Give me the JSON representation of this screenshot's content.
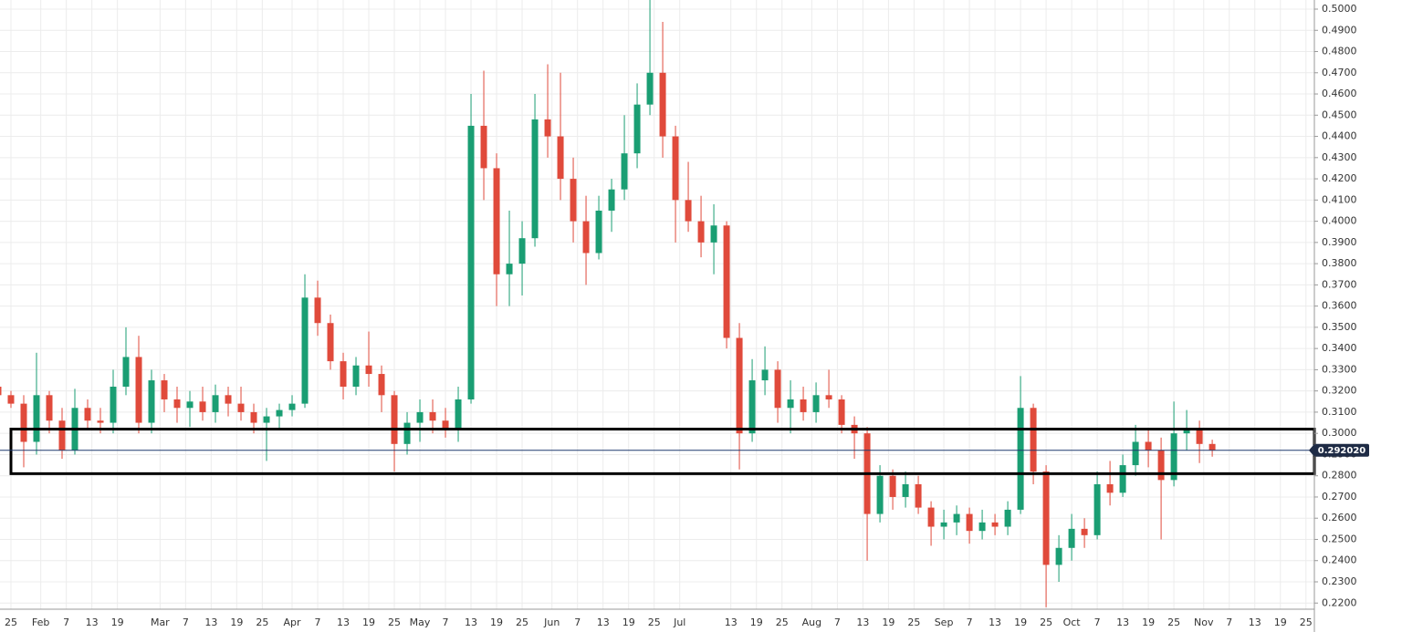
{
  "chart_data": {
    "type": "candlestick",
    "x": [
      "Jan 22",
      "Jan 25",
      "Jan 28",
      "Jan 31",
      "Feb 3",
      "Feb 6",
      "Feb 9",
      "Feb 12",
      "Feb 15",
      "Feb 18",
      "Feb 21",
      "Feb 24",
      "Feb 27",
      "Mar 2",
      "Mar 5",
      "Mar 8",
      "Mar 11",
      "Mar 14",
      "Mar 17",
      "Mar 20",
      "Mar 23",
      "Mar 26",
      "Mar 29",
      "Apr 1",
      "Apr 4",
      "Apr 7",
      "Apr 10",
      "Apr 13",
      "Apr 16",
      "Apr 19",
      "Apr 22",
      "Apr 25",
      "Apr 28",
      "May 1",
      "May 4",
      "May 7",
      "May 10",
      "May 13",
      "May 16",
      "May 19",
      "May 22",
      "May 25",
      "May 28",
      "May 31",
      "Jun 3",
      "Jun 6",
      "Jun 9",
      "Jun 12",
      "Jun 15",
      "Jun 18",
      "Jun 21",
      "Jun 24",
      "Jun 27",
      "Jun 30",
      "Jul 3",
      "Jul 6",
      "Jul 9",
      "Jul 12",
      "Jul 15",
      "Jul 18",
      "Jul 21",
      "Jul 24",
      "Jul 27",
      "Jul 30",
      "Aug 2",
      "Aug 5",
      "Aug 8",
      "Aug 11",
      "Aug 14",
      "Aug 17",
      "Aug 20",
      "Aug 23",
      "Aug 26",
      "Aug 29",
      "Sep 1",
      "Sep 4",
      "Sep 7",
      "Sep 10",
      "Sep 13",
      "Sep 16",
      "Sep 19",
      "Sep 22",
      "Sep 25",
      "Sep 28",
      "Oct 1",
      "Oct 4",
      "Oct 7",
      "Oct 10",
      "Oct 13",
      "Oct 16",
      "Oct 19",
      "Oct 22",
      "Oct 25",
      "Oct 28",
      "Oct 31",
      "Nov 3"
    ],
    "open": [
      0.322,
      0.318,
      0.314,
      0.296,
      0.318,
      0.306,
      0.292,
      0.312,
      0.306,
      0.305,
      0.322,
      0.336,
      0.305,
      0.325,
      0.316,
      0.312,
      0.315,
      0.31,
      0.318,
      0.314,
      0.31,
      0.305,
      0.308,
      0.311,
      0.314,
      0.364,
      0.352,
      0.334,
      0.322,
      0.332,
      0.328,
      0.318,
      0.295,
      0.305,
      0.31,
      0.306,
      0.302,
      0.316,
      0.445,
      0.425,
      0.375,
      0.38,
      0.392,
      0.448,
      0.44,
      0.42,
      0.4,
      0.385,
      0.405,
      0.415,
      0.432,
      0.455,
      0.47,
      0.44,
      0.41,
      0.4,
      0.39,
      0.398,
      0.345,
      0.3,
      0.325,
      0.33,
      0.312,
      0.316,
      0.31,
      0.318,
      0.316,
      0.304,
      0.3,
      0.262,
      0.28,
      0.27,
      0.276,
      0.265,
      0.256,
      0.258,
      0.262,
      0.254,
      0.258,
      0.256,
      0.264,
      0.312,
      0.282,
      0.238,
      0.246,
      0.255,
      0.252,
      0.276,
      0.272,
      0.285,
      0.296,
      0.292,
      0.278,
      0.3,
      0.302,
      0.295
    ],
    "high": [
      0.323,
      0.32,
      0.318,
      0.338,
      0.32,
      0.312,
      0.321,
      0.316,
      0.312,
      0.33,
      0.35,
      0.346,
      0.33,
      0.328,
      0.322,
      0.32,
      0.322,
      0.323,
      0.322,
      0.322,
      0.314,
      0.312,
      0.314,
      0.318,
      0.375,
      0.372,
      0.356,
      0.338,
      0.336,
      0.348,
      0.332,
      0.32,
      0.31,
      0.316,
      0.316,
      0.312,
      0.322,
      0.46,
      0.471,
      0.432,
      0.405,
      0.4,
      0.46,
      0.474,
      0.47,
      0.43,
      0.412,
      0.412,
      0.42,
      0.45,
      0.465,
      0.505,
      0.494,
      0.445,
      0.428,
      0.412,
      0.408,
      0.4,
      0.352,
      0.335,
      0.341,
      0.334,
      0.325,
      0.322,
      0.324,
      0.33,
      0.318,
      0.308,
      0.303,
      0.285,
      0.283,
      0.282,
      0.28,
      0.268,
      0.264,
      0.266,
      0.265,
      0.264,
      0.262,
      0.268,
      0.327,
      0.314,
      0.285,
      0.252,
      0.262,
      0.26,
      0.282,
      0.287,
      0.29,
      0.304,
      0.302,
      0.298,
      0.315,
      0.311,
      0.306,
      0.297
    ],
    "low": [
      0.316,
      0.312,
      0.284,
      0.29,
      0.3,
      0.288,
      0.29,
      0.302,
      0.3,
      0.3,
      0.318,
      0.3,
      0.3,
      0.31,
      0.305,
      0.303,
      0.306,
      0.305,
      0.308,
      0.306,
      0.3,
      0.287,
      0.302,
      0.308,
      0.312,
      0.346,
      0.33,
      0.316,
      0.318,
      0.322,
      0.31,
      0.282,
      0.29,
      0.296,
      0.3,
      0.298,
      0.296,
      0.314,
      0.41,
      0.36,
      0.36,
      0.365,
      0.388,
      0.43,
      0.41,
      0.39,
      0.37,
      0.382,
      0.395,
      0.41,
      0.425,
      0.45,
      0.43,
      0.39,
      0.395,
      0.383,
      0.375,
      0.34,
      0.283,
      0.296,
      0.318,
      0.305,
      0.3,
      0.306,
      0.305,
      0.312,
      0.3,
      0.288,
      0.24,
      0.258,
      0.264,
      0.265,
      0.262,
      0.247,
      0.25,
      0.252,
      0.248,
      0.25,
      0.252,
      0.252,
      0.262,
      0.276,
      0.218,
      0.23,
      0.24,
      0.246,
      0.25,
      0.266,
      0.27,
      0.28,
      0.284,
      0.25,
      0.275,
      0.292,
      0.286,
      0.289
    ],
    "close": [
      0.318,
      0.314,
      0.296,
      0.318,
      0.306,
      0.292,
      0.312,
      0.306,
      0.305,
      0.322,
      0.336,
      0.305,
      0.325,
      0.316,
      0.312,
      0.315,
      0.31,
      0.318,
      0.314,
      0.31,
      0.305,
      0.308,
      0.311,
      0.314,
      0.364,
      0.352,
      0.334,
      0.322,
      0.332,
      0.328,
      0.318,
      0.295,
      0.305,
      0.31,
      0.306,
      0.302,
      0.316,
      0.445,
      0.425,
      0.375,
      0.38,
      0.392,
      0.448,
      0.44,
      0.42,
      0.4,
      0.385,
      0.405,
      0.415,
      0.432,
      0.455,
      0.47,
      0.44,
      0.41,
      0.4,
      0.39,
      0.398,
      0.345,
      0.3,
      0.325,
      0.33,
      0.312,
      0.316,
      0.31,
      0.318,
      0.316,
      0.304,
      0.3,
      0.262,
      0.28,
      0.27,
      0.276,
      0.265,
      0.256,
      0.258,
      0.262,
      0.254,
      0.258,
      0.256,
      0.264,
      0.312,
      0.282,
      0.238,
      0.246,
      0.255,
      0.252,
      0.276,
      0.272,
      0.285,
      0.296,
      0.292,
      0.278,
      0.3,
      0.302,
      0.295,
      0.292
    ],
    "up_color": "#1a9e73",
    "down_color": "#e04a3b",
    "ylim": [
      0.2171,
      0.5043
    ],
    "yticks": [
      {
        "value": 0.22,
        "label": "0.2200"
      },
      {
        "value": 0.23,
        "label": "0.2300"
      },
      {
        "value": 0.24,
        "label": "0.2400"
      },
      {
        "value": 0.25,
        "label": "0.2500"
      },
      {
        "value": 0.26,
        "label": "0.2600"
      },
      {
        "value": 0.27,
        "label": "0.2700"
      },
      {
        "value": 0.28,
        "label": "0.2800"
      },
      {
        "value": 0.29,
        "label": "0.2900"
      },
      {
        "value": 0.3,
        "label": "0.3000"
      },
      {
        "value": 0.31,
        "label": "0.3100"
      },
      {
        "value": 0.32,
        "label": "0.3200"
      },
      {
        "value": 0.33,
        "label": "0.3300"
      },
      {
        "value": 0.34,
        "label": "0.3400"
      },
      {
        "value": 0.35,
        "label": "0.3500"
      },
      {
        "value": 0.36,
        "label": "0.3600"
      },
      {
        "value": 0.37,
        "label": "0.3700"
      },
      {
        "value": 0.38,
        "label": "0.3800"
      },
      {
        "value": 0.39,
        "label": "0.3900"
      },
      {
        "value": 0.4,
        "label": "0.4000"
      },
      {
        "value": 0.41,
        "label": "0.4100"
      },
      {
        "value": 0.42,
        "label": "0.4200"
      },
      {
        "value": 0.43,
        "label": "0.4300"
      },
      {
        "value": 0.44,
        "label": "0.4400"
      },
      {
        "value": 0.45,
        "label": "0.4500"
      },
      {
        "value": 0.46,
        "label": "0.4600"
      },
      {
        "value": 0.47,
        "label": "0.4700"
      },
      {
        "value": 0.48,
        "label": "0.4800"
      },
      {
        "value": 0.49,
        "label": "0.4900"
      },
      {
        "value": 0.5,
        "label": "0.5000"
      }
    ],
    "xticks": [
      {
        "value": "Jan 25",
        "label": "25"
      },
      {
        "value": "Feb 1",
        "label": "Feb"
      },
      {
        "value": "Feb 7",
        "label": "7"
      },
      {
        "value": "Feb 13",
        "label": "13"
      },
      {
        "value": "Feb 19",
        "label": "19"
      },
      {
        "value": "Mar 1",
        "label": "Mar"
      },
      {
        "value": "Mar 7",
        "label": "7"
      },
      {
        "value": "Mar 13",
        "label": "13"
      },
      {
        "value": "Mar 19",
        "label": "19"
      },
      {
        "value": "Mar 25",
        "label": "25"
      },
      {
        "value": "Apr 1",
        "label": "Apr"
      },
      {
        "value": "Apr 7",
        "label": "7"
      },
      {
        "value": "Apr 13",
        "label": "13"
      },
      {
        "value": "Apr 19",
        "label": "19"
      },
      {
        "value": "Apr 25",
        "label": "25"
      },
      {
        "value": "May 1",
        "label": "May"
      },
      {
        "value": "May 7",
        "label": "7"
      },
      {
        "value": "May 13",
        "label": "13"
      },
      {
        "value": "May 19",
        "label": "19"
      },
      {
        "value": "May 25",
        "label": "25"
      },
      {
        "value": "Jun 1",
        "label": "Jun"
      },
      {
        "value": "Jun 7",
        "label": "7"
      },
      {
        "value": "Jun 13",
        "label": "13"
      },
      {
        "value": "Jun 19",
        "label": "19"
      },
      {
        "value": "Jun 25",
        "label": "25"
      },
      {
        "value": "Jul 1",
        "label": "Jul"
      },
      {
        "value": "Jul 13",
        "label": "13"
      },
      {
        "value": "Jul 19",
        "label": "19"
      },
      {
        "value": "Jul 25",
        "label": "25"
      },
      {
        "value": "Aug 1",
        "label": "Aug"
      },
      {
        "value": "Aug 7",
        "label": "7"
      },
      {
        "value": "Aug 13",
        "label": "13"
      },
      {
        "value": "Aug 19",
        "label": "19"
      },
      {
        "value": "Aug 25",
        "label": "25"
      },
      {
        "value": "Sep 1",
        "label": "Sep"
      },
      {
        "value": "Sep 7",
        "label": "7"
      },
      {
        "value": "Sep 13",
        "label": "13"
      },
      {
        "value": "Sep 19",
        "label": "19"
      },
      {
        "value": "Sep 25",
        "label": "25"
      },
      {
        "value": "Oct 1",
        "label": "Oct"
      },
      {
        "value": "Oct 7",
        "label": "7"
      },
      {
        "value": "Oct 13",
        "label": "13"
      },
      {
        "value": "Oct 19",
        "label": "19"
      },
      {
        "value": "Oct 25",
        "label": "25"
      },
      {
        "value": "Nov 1",
        "label": "Nov"
      },
      {
        "value": "Nov 7",
        "label": "7"
      },
      {
        "value": "Nov 13",
        "label": "13"
      },
      {
        "value": "Nov 19",
        "label": "19"
      },
      {
        "value": "Nov 25",
        "label": "25"
      }
    ],
    "grid": true,
    "last_price": {
      "value": 0.29202,
      "label": "0.292020"
    },
    "zone": {
      "x_start": "Jan 25",
      "ylim": [
        0.281,
        0.302
      ]
    }
  }
}
